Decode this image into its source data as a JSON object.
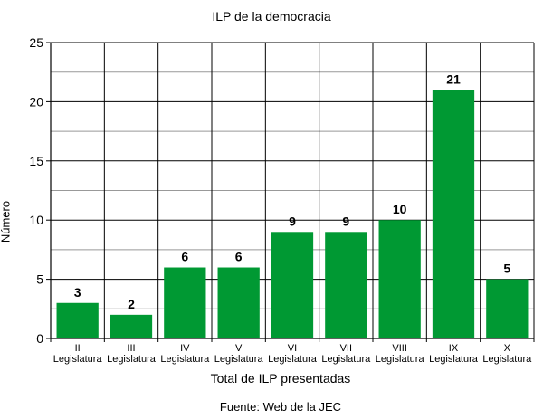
{
  "chart_data": {
    "type": "bar",
    "title": "ILP de la democracia",
    "xlabel": "Total de ILP presentadas",
    "ylabel": "Número",
    "source": "Fuente: Web de la JEC",
    "ylim": [
      0,
      25
    ],
    "yticks": [
      0,
      5,
      10,
      15,
      20,
      25
    ],
    "grid": true,
    "categories": [
      [
        "II",
        "Legislatura"
      ],
      [
        "III",
        "Legislatura"
      ],
      [
        "IV",
        "Legislatura"
      ],
      [
        "V",
        "Legislatura"
      ],
      [
        "VI",
        "Legislatura"
      ],
      [
        "VII",
        "Legislatura"
      ],
      [
        "VIII",
        "Legislatura"
      ],
      [
        "IX",
        "Legislatura"
      ],
      [
        "X",
        "Legislatura"
      ]
    ],
    "values": [
      3,
      2,
      6,
      6,
      9,
      9,
      10,
      21,
      5
    ],
    "data_labels": [
      "3",
      "2",
      "6",
      "6",
      "9",
      "9",
      "10",
      "21",
      "5"
    ],
    "colors": {
      "bar": "#009933",
      "grid_major": "#000000",
      "grid_minor": "#999999"
    }
  }
}
